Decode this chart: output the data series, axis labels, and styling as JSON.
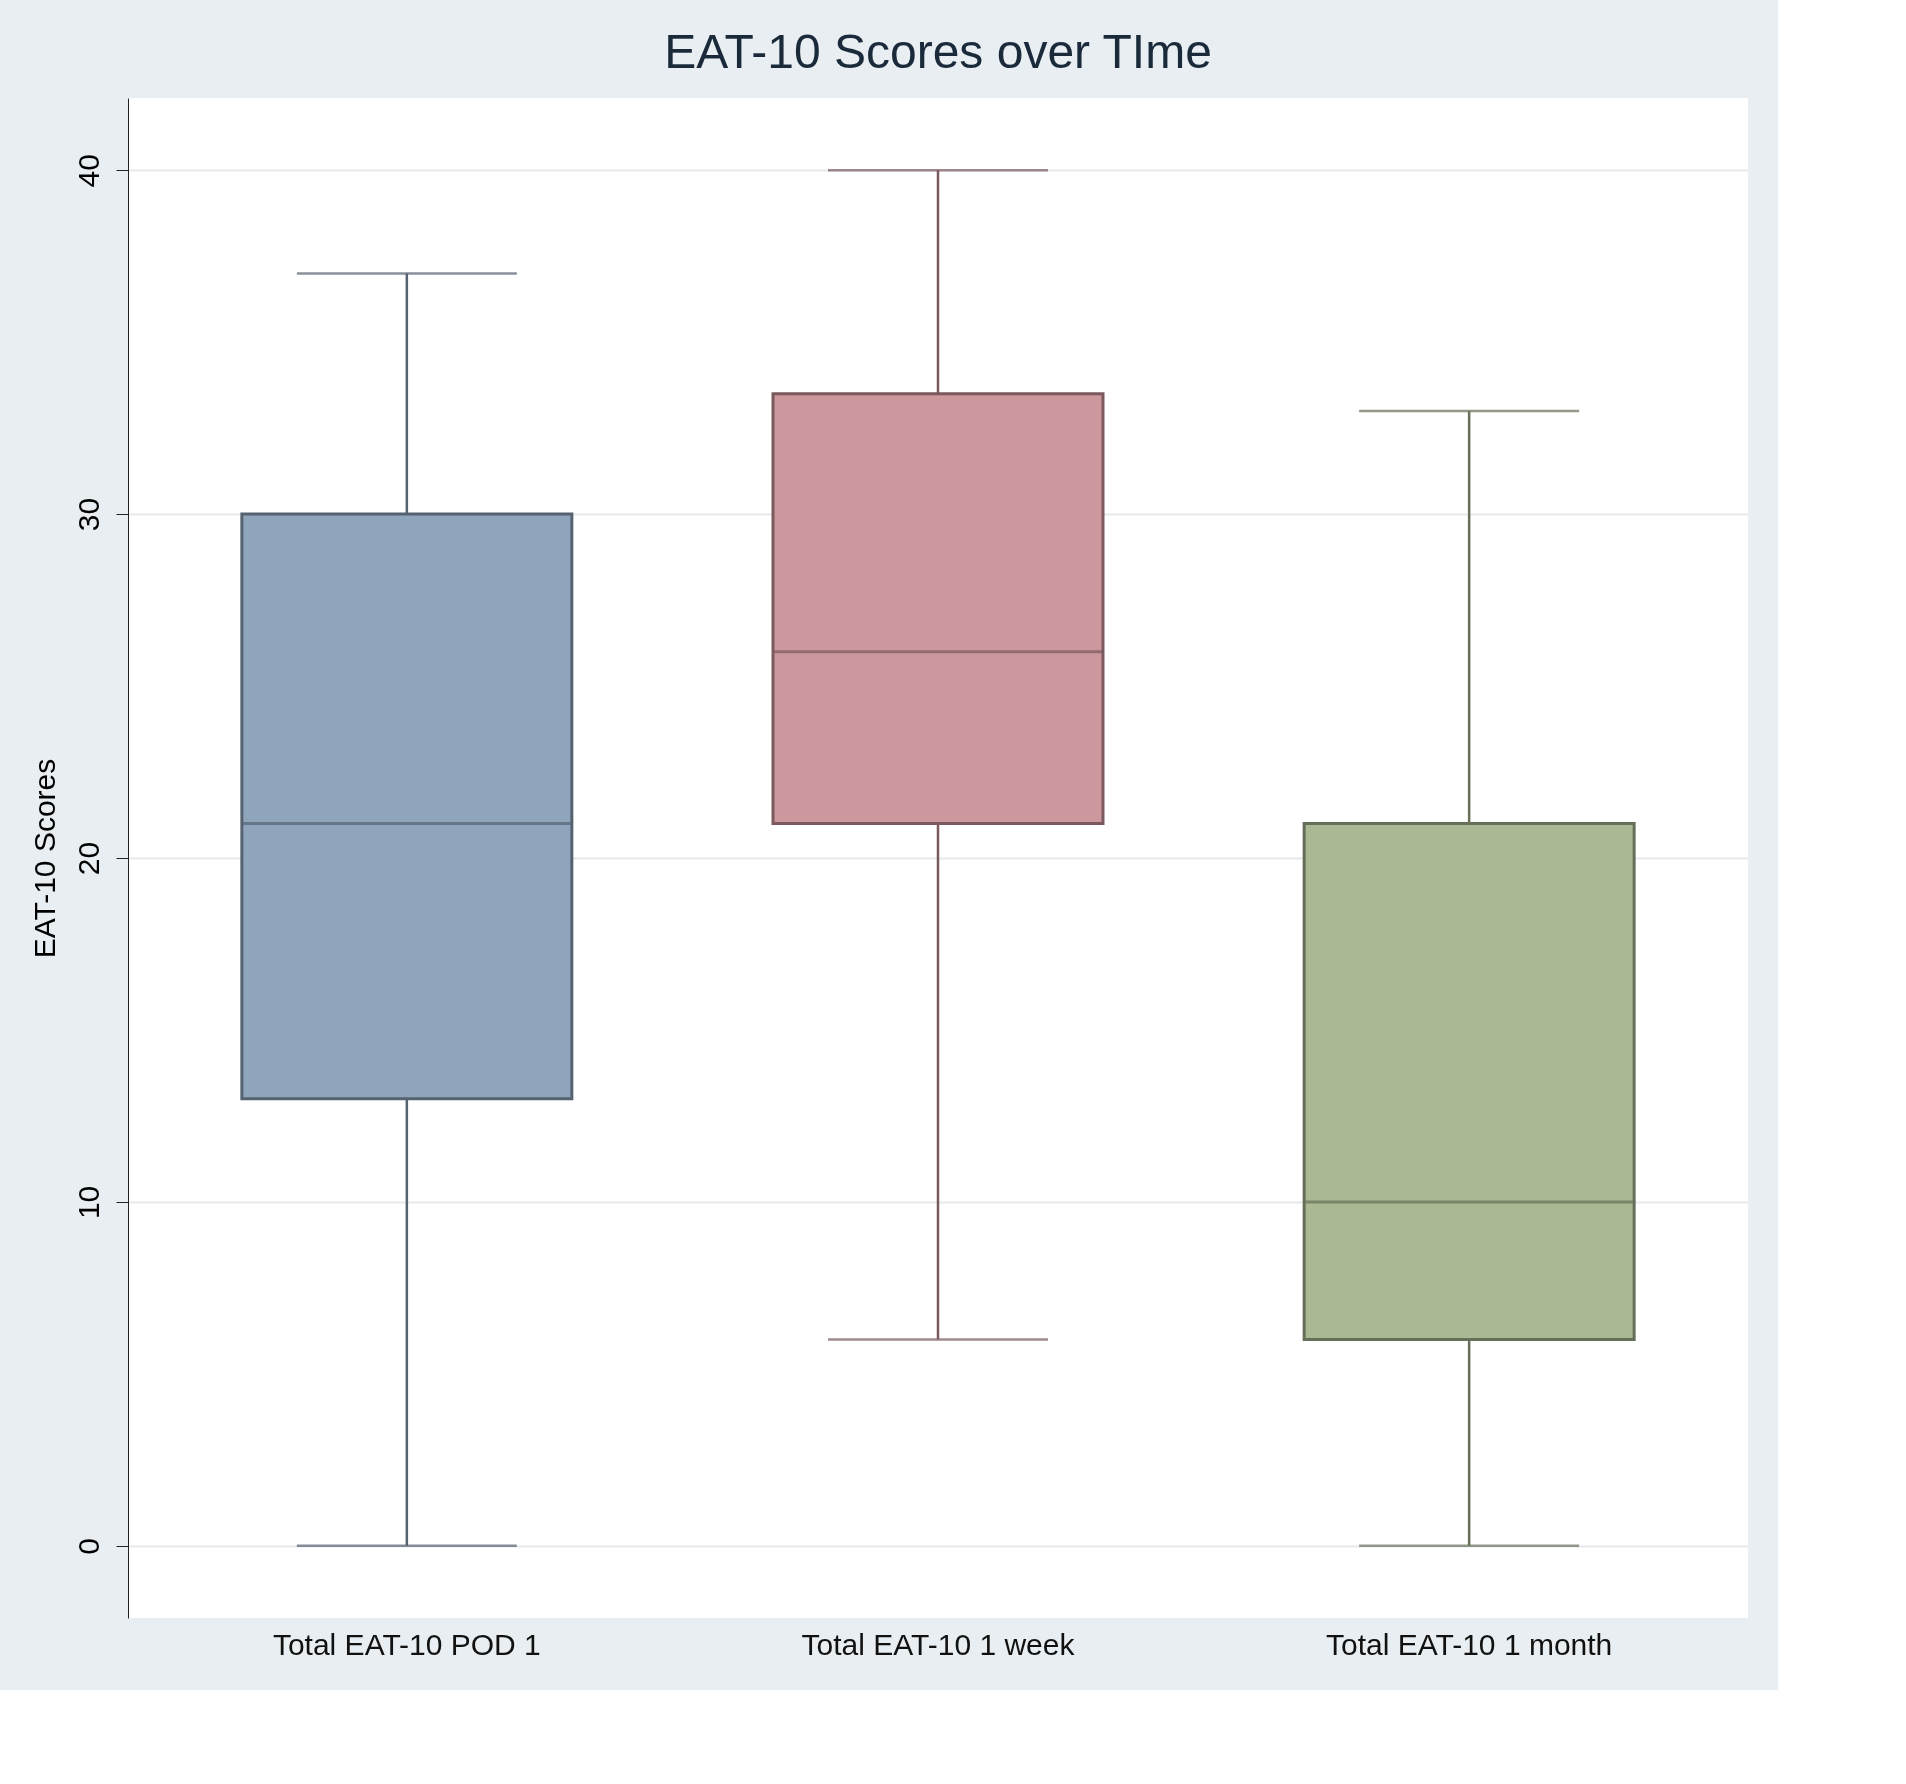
{
  "chart_data": {
    "type": "box",
    "title": "EAT-10 Scores over TIme",
    "ylabel": "EAT-10 Scores",
    "categories": [
      "Total EAT-10 POD 1",
      "Total EAT-10 1 week",
      "Total EAT-10 1 month"
    ],
    "boxes": [
      {
        "low": 0,
        "q1": 13,
        "median": 21,
        "q3": 30,
        "high": 37
      },
      {
        "low": 6,
        "q1": 21,
        "median": 26,
        "q3": 33.5,
        "high": 40
      },
      {
        "low": 0,
        "q1": 6,
        "median": 10,
        "q3": 21,
        "high": 33
      }
    ],
    "colors": [
      "#8ea5bb",
      "#cc979d",
      "#aab993"
    ],
    "ylim": [
      -2.1,
      42.1
    ],
    "yticks": [
      0,
      10,
      20,
      30,
      40
    ],
    "grid": "y"
  }
}
